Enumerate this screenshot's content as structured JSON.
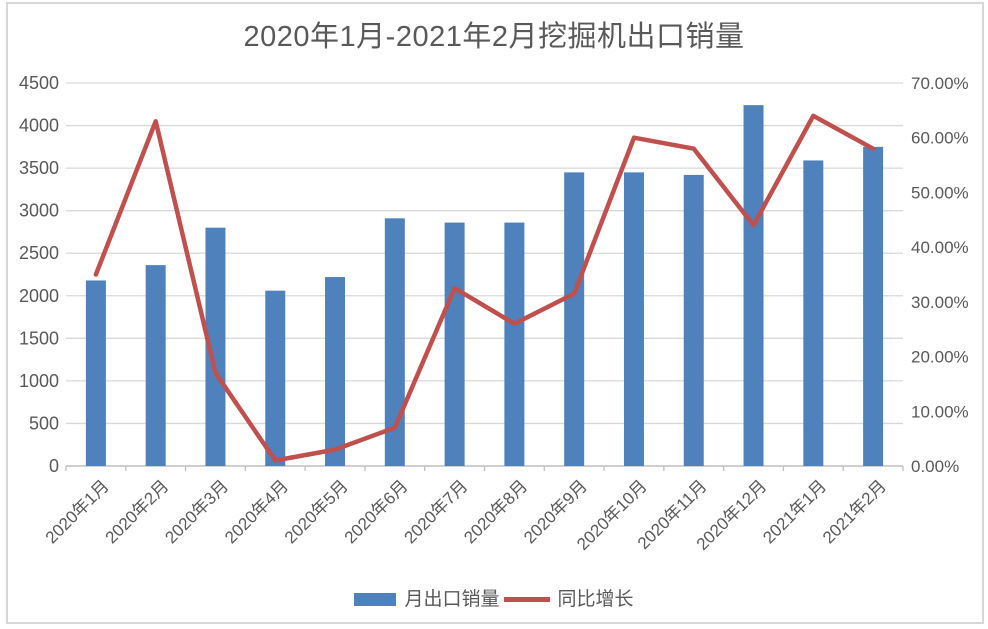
{
  "title": "2020年1月-2021年2月挖掘机出口销量",
  "legend": {
    "items": [
      {
        "label": "月出口销量",
        "marker": "bar-swatch"
      },
      {
        "label": "同比增长",
        "marker": "line-swatch"
      }
    ]
  },
  "colors": {
    "bar": "#4F81BD",
    "line": "#C0504D",
    "gridline": "#D9D9D9",
    "axis_line": "#BFBFBF",
    "text": "#595959",
    "border": "#D7D7D7"
  },
  "chart_data": {
    "type": "combo-bar-line",
    "title": "2020年1月-2021年2月挖掘机出口销量",
    "categories": [
      "2020年1月",
      "2020年2月",
      "2020年3月",
      "2020年4月",
      "2020年5月",
      "2020年6月",
      "2020年7月",
      "2020年8月",
      "2020年9月",
      "2020年10月",
      "2020年11月",
      "2020年12月",
      "2021年1月",
      "2021年2月"
    ],
    "series": [
      {
        "name": "月出口销量",
        "type": "bar",
        "axis": "left",
        "values": [
          2180,
          2360,
          2800,
          2060,
          2220,
          2910,
          2860,
          2860,
          3450,
          3450,
          3420,
          4240,
          3590,
          3750
        ]
      },
      {
        "name": "同比增长",
        "type": "line",
        "axis": "right",
        "values_pct": [
          35,
          63,
          17,
          1,
          3,
          7,
          32.5,
          26,
          31.5,
          60,
          58,
          44,
          64,
          58
        ]
      }
    ],
    "left_axis": {
      "min": 0,
      "max": 4500,
      "step": 500,
      "tick_labels": [
        "0",
        "500",
        "1000",
        "1500",
        "2000",
        "2500",
        "3000",
        "3500",
        "4000",
        "4500"
      ]
    },
    "right_axis": {
      "min": 0,
      "max": 70,
      "step": 10,
      "tick_labels": [
        "0.00%",
        "10.00%",
        "20.00%",
        "30.00%",
        "40.00%",
        "50.00%",
        "60.00%",
        "70.00%"
      ]
    },
    "grid": "horizontal-only",
    "legend_position": "bottom"
  }
}
